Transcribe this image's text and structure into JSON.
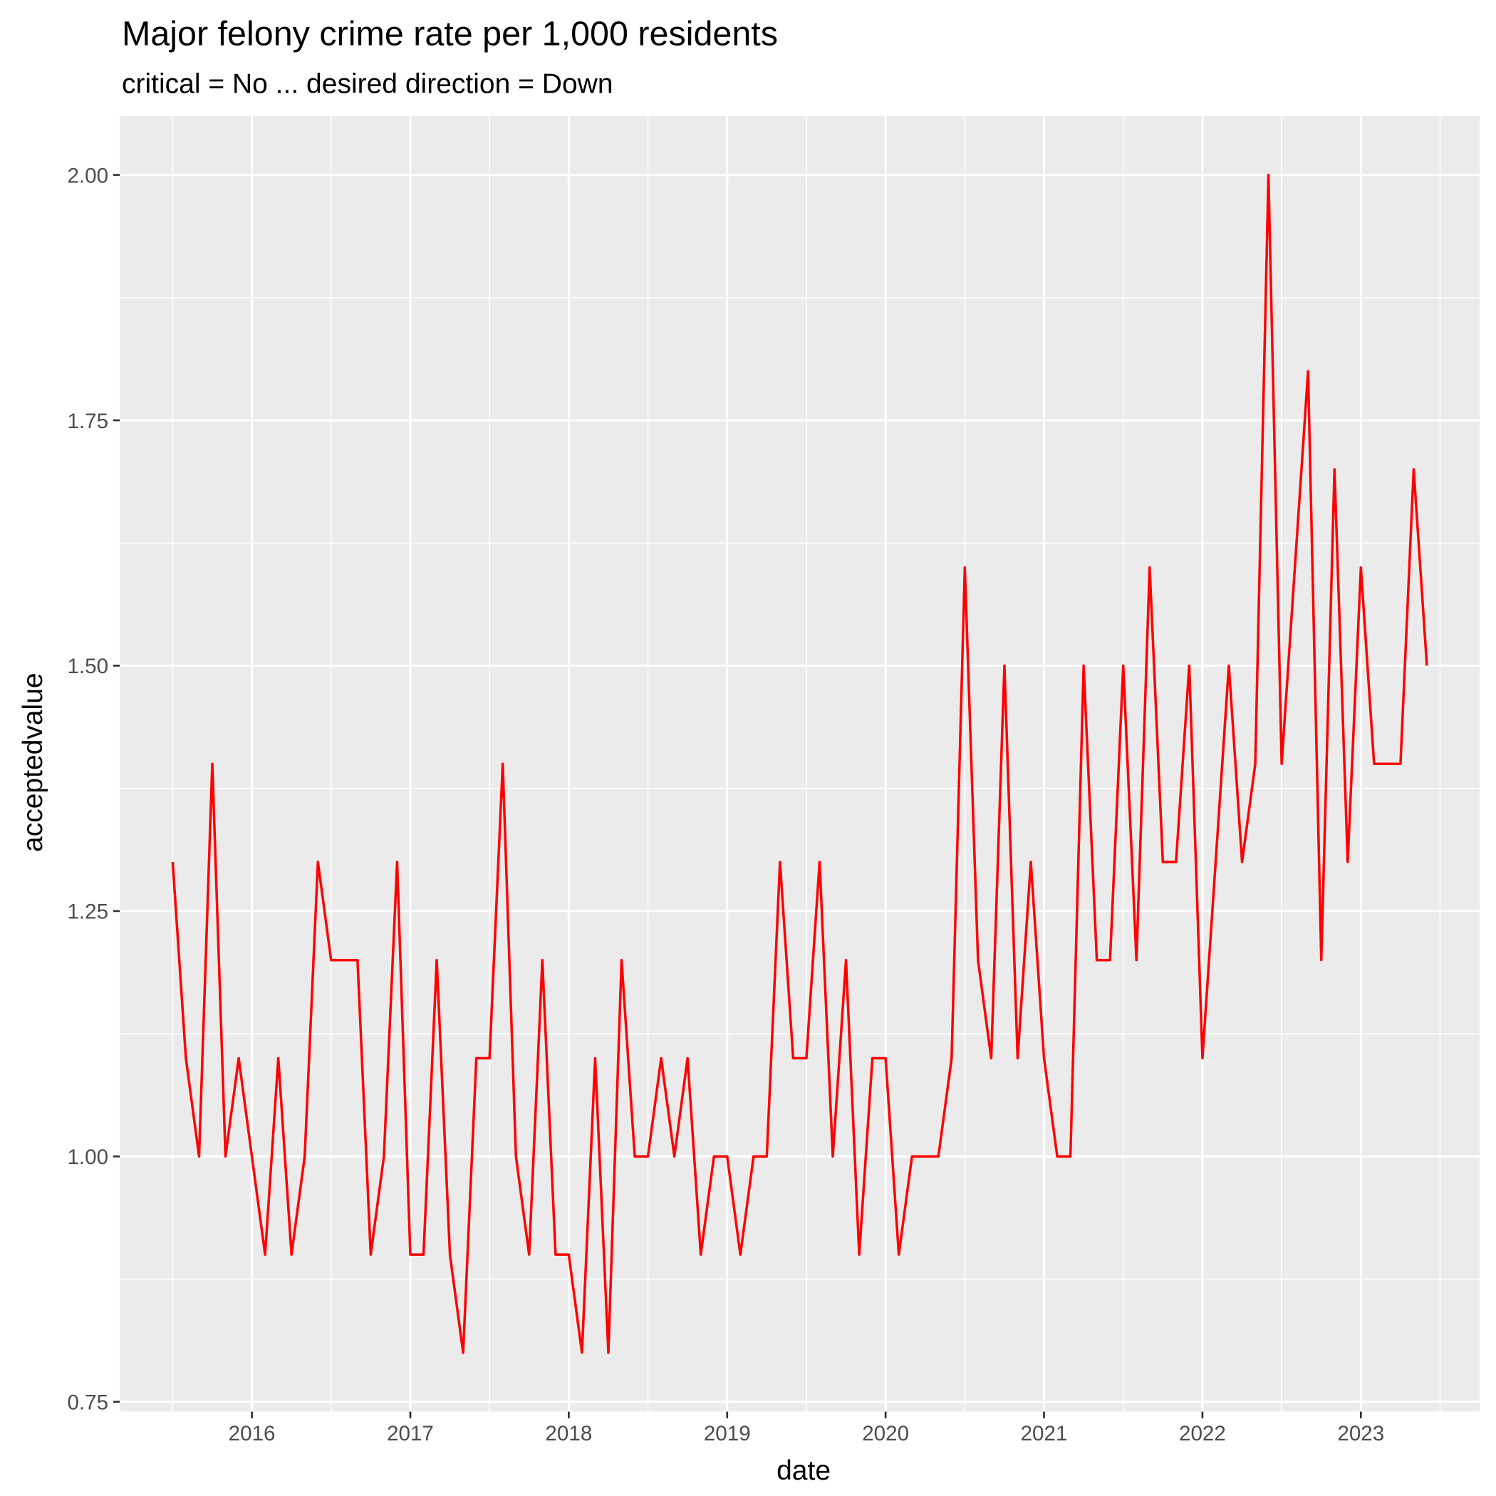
{
  "chart_data": {
    "type": "line",
    "title": "Major felony crime rate per 1,000 residents",
    "subtitle": "critical = No ... desired direction = Down",
    "x_label": "date",
    "y_label": "acceptedvalue",
    "x": [
      "2015-07",
      "2015-08",
      "2015-09",
      "2015-10",
      "2015-11",
      "2015-12",
      "2016-01",
      "2016-02",
      "2016-03",
      "2016-04",
      "2016-05",
      "2016-06",
      "2016-07",
      "2016-08",
      "2016-09",
      "2016-10",
      "2016-11",
      "2016-12",
      "2017-01",
      "2017-02",
      "2017-03",
      "2017-04",
      "2017-05",
      "2017-06",
      "2017-07",
      "2017-08",
      "2017-09",
      "2017-10",
      "2017-11",
      "2017-12",
      "2018-01",
      "2018-02",
      "2018-03",
      "2018-04",
      "2018-05",
      "2018-06",
      "2018-07",
      "2018-08",
      "2018-09",
      "2018-10",
      "2018-11",
      "2018-12",
      "2019-01",
      "2019-02",
      "2019-03",
      "2019-04",
      "2019-05",
      "2019-06",
      "2019-07",
      "2019-08",
      "2019-09",
      "2019-10",
      "2019-11",
      "2019-12",
      "2020-01",
      "2020-02",
      "2020-03",
      "2020-04",
      "2020-05",
      "2020-06",
      "2020-07",
      "2020-08",
      "2020-09",
      "2020-10",
      "2020-11",
      "2020-12",
      "2021-01",
      "2021-02",
      "2021-03",
      "2021-04",
      "2021-05",
      "2021-06",
      "2021-07",
      "2021-08",
      "2021-09",
      "2021-10",
      "2021-11",
      "2021-12",
      "2022-01",
      "2022-02",
      "2022-03",
      "2022-04",
      "2022-05",
      "2022-06",
      "2022-07",
      "2022-08",
      "2022-09",
      "2022-10",
      "2022-11",
      "2022-12",
      "2023-01",
      "2023-02",
      "2023-03",
      "2023-04",
      "2023-05",
      "2023-06"
    ],
    "series": [
      {
        "name": "acceptedvalue",
        "color": "#ff0000",
        "values": [
          1.3,
          1.1,
          1.0,
          1.4,
          1.0,
          1.1,
          1.0,
          0.9,
          1.1,
          0.9,
          1.0,
          1.3,
          1.2,
          1.2,
          1.2,
          0.9,
          1.0,
          1.3,
          0.9,
          0.9,
          1.2,
          0.9,
          0.8,
          1.1,
          1.1,
          1.4,
          1.0,
          0.9,
          1.2,
          0.9,
          0.9,
          0.8,
          1.1,
          0.8,
          1.2,
          1.0,
          1.0,
          1.1,
          1.0,
          1.1,
          0.9,
          1.0,
          1.0,
          0.9,
          1.0,
          1.0,
          1.3,
          1.1,
          1.1,
          1.3,
          1.0,
          1.2,
          0.9,
          1.1,
          1.1,
          0.9,
          1.0,
          1.0,
          1.0,
          1.1,
          1.6,
          1.2,
          1.1,
          1.5,
          1.1,
          1.3,
          1.1,
          1.0,
          1.0,
          1.5,
          1.2,
          1.2,
          1.5,
          1.2,
          1.6,
          1.3,
          1.3,
          1.5,
          1.1,
          1.3,
          1.5,
          1.3,
          1.4,
          2.0,
          1.4,
          1.6,
          1.8,
          1.2,
          1.7,
          1.3,
          1.6,
          1.4,
          1.4,
          1.4,
          1.7,
          1.5
        ]
      }
    ],
    "xlim": [
      "2015-03",
      "2023-10"
    ],
    "xticks": [
      {
        "value": "2016-01",
        "label": "2016"
      },
      {
        "value": "2017-01",
        "label": "2017"
      },
      {
        "value": "2018-01",
        "label": "2018"
      },
      {
        "value": "2019-01",
        "label": "2019"
      },
      {
        "value": "2020-01",
        "label": "2020"
      },
      {
        "value": "2021-01",
        "label": "2021"
      },
      {
        "value": "2022-01",
        "label": "2022"
      },
      {
        "value": "2023-01",
        "label": "2023"
      }
    ],
    "ylim": [
      0.74,
      2.06
    ],
    "yticks": [
      {
        "value": 0.75,
        "label": "0.75"
      },
      {
        "value": 1.0,
        "label": "1.00"
      },
      {
        "value": 1.25,
        "label": "1.25"
      },
      {
        "value": 1.5,
        "label": "1.50"
      },
      {
        "value": 1.75,
        "label": "1.75"
      },
      {
        "value": 2.0,
        "label": "2.00"
      }
    ],
    "grid": true
  }
}
